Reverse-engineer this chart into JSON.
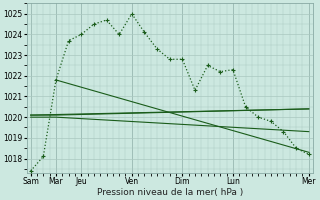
{
  "xlabel": "Pression niveau de la mer( hPa )",
  "background_color": "#cce8e0",
  "grid_color": "#aac8c0",
  "line_color": "#1a5c1a",
  "ylim": [
    1017.3,
    1025.5
  ],
  "yticks": [
    1018,
    1019,
    1020,
    1021,
    1022,
    1023,
    1024,
    1025
  ],
  "xlim": [
    -0.3,
    22.3
  ],
  "day_tick_positions": [
    0,
    2,
    4,
    8,
    12,
    16,
    22
  ],
  "day_tick_labels": [
    "Sam",
    "Mar",
    "Jeu",
    "Ven",
    "Dim",
    "Lun",
    "Mer"
  ],
  "series_dotted": {
    "x": [
      0,
      1,
      2,
      3,
      4,
      5,
      6,
      7,
      8,
      9,
      10,
      11,
      12,
      13,
      14,
      15,
      16,
      17,
      18,
      19,
      20,
      21,
      22
    ],
    "y": [
      1017.4,
      1018.1,
      1021.8,
      1023.7,
      1024.0,
      1024.5,
      1024.7,
      1024.0,
      1025.0,
      1024.1,
      1023.3,
      1022.8,
      1022.8,
      1021.3,
      1022.5,
      1022.2,
      1022.3,
      1020.5,
      1020.0,
      1019.8,
      1019.3,
      1018.5,
      1018.2
    ]
  },
  "series_line1": {
    "x": [
      0,
      2,
      22
    ],
    "y": [
      1020.1,
      1020.1,
      1020.4
    ]
  },
  "series_line2": {
    "x": [
      0,
      2,
      22
    ],
    "y": [
      1020.0,
      1020.0,
      1019.3
    ]
  },
  "series_diagonal1": {
    "x": [
      2,
      22
    ],
    "y": [
      1021.8,
      1018.3
    ]
  },
  "series_diagonal2": {
    "x": [
      0,
      22
    ],
    "y": [
      1020.1,
      1020.4
    ]
  }
}
